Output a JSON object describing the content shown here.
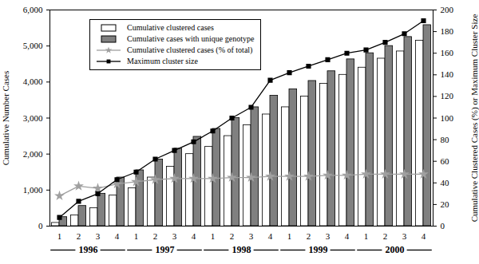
{
  "chart_data": {
    "type": "bar",
    "categories": [
      "1",
      "2",
      "3",
      "4",
      "1",
      "2",
      "3",
      "4",
      "1",
      "2",
      "3",
      "4",
      "1",
      "2",
      "3",
      "4",
      "1",
      "2",
      "3",
      "4"
    ],
    "year_labels": [
      "1996",
      "1997",
      "1998",
      "1999",
      "2000"
    ],
    "y_label": "Cumulative Number Cases",
    "y2_label": "Cumulative Clustered Cases (%) or Maximum Cluster Size",
    "ylim": [
      0,
      6000
    ],
    "yticks": [
      0,
      1000,
      2000,
      3000,
      4000,
      5000,
      6000
    ],
    "y2lim": [
      0,
      200
    ],
    "y2ticks": [
      0,
      20,
      40,
      60,
      80,
      100,
      120,
      140,
      160,
      180,
      200
    ],
    "grid": false,
    "legend": "top-left",
    "series": [
      {
        "name": "Cumulative clustered cases",
        "type": "bar",
        "color": "#ffffff",
        "values": [
          90,
          300,
          500,
          850,
          1050,
          1350,
          1650,
          2000,
          2200,
          2500,
          2800,
          3100,
          3300,
          3600,
          3950,
          4200,
          4400,
          4650,
          4850,
          5150
        ]
      },
      {
        "name": "Cumulative cases with unique genotype",
        "type": "bar",
        "color": "#808080",
        "values": [
          250,
          560,
          900,
          1350,
          1550,
          1850,
          2150,
          2480,
          2700,
          3000,
          3300,
          3620,
          3800,
          4030,
          4300,
          4630,
          4800,
          5000,
          5250,
          5580
        ]
      },
      {
        "name": "Cumulative clustered cases (% of total)",
        "type": "line",
        "axis": "y2",
        "color": "#a0a0a0",
        "marker": "star",
        "values": [
          28,
          37,
          35,
          39,
          41,
          43,
          44,
          44,
          44,
          45,
          45,
          46,
          46,
          46,
          47,
          47,
          48,
          48,
          48,
          48
        ]
      },
      {
        "name": "Maximum cluster size",
        "type": "line",
        "axis": "y2",
        "color": "#000000",
        "marker": "square",
        "values": [
          8,
          23,
          30,
          43,
          50,
          62,
          70,
          78,
          88,
          100,
          110,
          135,
          142,
          148,
          154,
          160,
          163,
          170,
          178,
          190
        ]
      }
    ]
  }
}
